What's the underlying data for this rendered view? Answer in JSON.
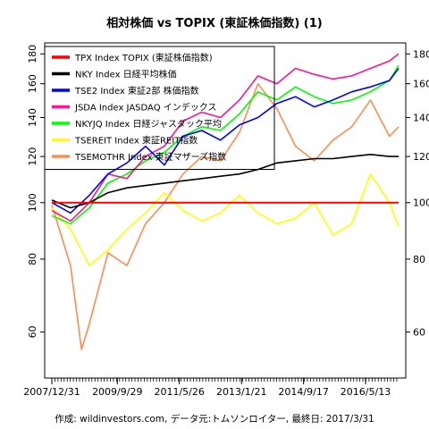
{
  "chart_data": {
    "type": "line",
    "title": "相対株価 vs TOPIX (東証株価指数) (1)",
    "caption": "作成: wildinvestors.com, データ元:トムソンロイター, 最終日: 2017/3/31",
    "x_tick_labels": [
      "2007/12/31",
      "2009/9/29",
      "2011/5/26",
      "2013/1/21",
      "2014/9/17",
      "2016/5/13"
    ],
    "x_range": [
      "2007-12-31",
      "2017-03-31"
    ],
    "y_ticks": [
      60,
      80,
      100,
      120,
      140,
      160,
      180
    ],
    "ylim": [
      50,
      188
    ],
    "y_scale": "log",
    "legend_position": "top-left",
    "series": [
      {
        "name": "TPX Index TOPIX (東証株価指数)",
        "color": "#ff0000",
        "points": [
          [
            "2007-12-31",
            100
          ],
          [
            "2017-03-31",
            100
          ]
        ]
      },
      {
        "name": "NKY Index 日経平均株価",
        "color": "#000000",
        "points": [
          [
            "2007-12-31",
            101
          ],
          [
            "2008-06-30",
            98
          ],
          [
            "2008-12-31",
            100
          ],
          [
            "2009-06-30",
            104
          ],
          [
            "2009-12-31",
            106
          ],
          [
            "2010-06-30",
            107
          ],
          [
            "2010-12-31",
            108
          ],
          [
            "2011-06-30",
            109
          ],
          [
            "2011-12-31",
            110
          ],
          [
            "2012-06-30",
            111
          ],
          [
            "2012-12-31",
            112
          ],
          [
            "2013-06-30",
            114
          ],
          [
            "2013-12-31",
            117
          ],
          [
            "2014-06-30",
            118
          ],
          [
            "2014-12-31",
            119
          ],
          [
            "2015-06-30",
            119
          ],
          [
            "2015-12-31",
            120
          ],
          [
            "2016-06-30",
            121
          ],
          [
            "2016-12-31",
            120
          ],
          [
            "2017-03-31",
            120
          ]
        ]
      },
      {
        "name": "TSE2 Index 東証2部 株価指数",
        "color": "#0000ff",
        "points": [
          [
            "2007-12-31",
            100
          ],
          [
            "2008-06-30",
            96
          ],
          [
            "2008-12-31",
            103
          ],
          [
            "2009-06-30",
            112
          ],
          [
            "2009-12-31",
            117
          ],
          [
            "2010-06-30",
            125
          ],
          [
            "2010-12-31",
            116
          ],
          [
            "2011-06-30",
            130
          ],
          [
            "2011-12-31",
            133
          ],
          [
            "2012-06-30",
            128
          ],
          [
            "2012-12-31",
            136
          ],
          [
            "2013-06-30",
            140
          ],
          [
            "2013-12-31",
            148
          ],
          [
            "2014-06-30",
            152
          ],
          [
            "2014-12-31",
            146
          ],
          [
            "2015-06-30",
            150
          ],
          [
            "2015-12-31",
            155
          ],
          [
            "2016-06-30",
            158
          ],
          [
            "2016-12-31",
            162
          ],
          [
            "2017-03-31",
            170
          ]
        ]
      },
      {
        "name": "JSDA Index JASDAQ インデックス",
        "color": "#ff1493",
        "points": [
          [
            "2007-12-31",
            97
          ],
          [
            "2008-06-30",
            93
          ],
          [
            "2008-12-31",
            100
          ],
          [
            "2009-06-30",
            112
          ],
          [
            "2009-12-31",
            110
          ],
          [
            "2010-06-30",
            120
          ],
          [
            "2010-12-31",
            125
          ],
          [
            "2011-06-30",
            138
          ],
          [
            "2011-12-31",
            143
          ],
          [
            "2012-06-30",
            140
          ],
          [
            "2012-12-31",
            150
          ],
          [
            "2013-06-30",
            165
          ],
          [
            "2013-12-31",
            160
          ],
          [
            "2014-06-30",
            170
          ],
          [
            "2014-12-31",
            166
          ],
          [
            "2015-06-30",
            163
          ],
          [
            "2015-12-31",
            165
          ],
          [
            "2016-06-30",
            170
          ],
          [
            "2016-12-31",
            175
          ],
          [
            "2017-03-31",
            180
          ]
        ]
      },
      {
        "name": "NKYJQ Index 日経ジャスダック平均",
        "color": "#00ff00",
        "points": [
          [
            "2007-12-31",
            95
          ],
          [
            "2008-06-30",
            92
          ],
          [
            "2008-12-31",
            98
          ],
          [
            "2009-06-30",
            108
          ],
          [
            "2009-12-31",
            112
          ],
          [
            "2010-06-30",
            118
          ],
          [
            "2010-12-31",
            122
          ],
          [
            "2011-06-30",
            130
          ],
          [
            "2011-12-31",
            135
          ],
          [
            "2012-06-30",
            133
          ],
          [
            "2012-12-31",
            142
          ],
          [
            "2013-06-30",
            155
          ],
          [
            "2013-12-31",
            150
          ],
          [
            "2014-06-30",
            158
          ],
          [
            "2014-12-31",
            152
          ],
          [
            "2015-06-30",
            148
          ],
          [
            "2015-12-31",
            150
          ],
          [
            "2016-06-30",
            155
          ],
          [
            "2016-12-31",
            162
          ],
          [
            "2017-03-31",
            172
          ]
        ]
      },
      {
        "name": "TSEREIT Index 東証REIT指数",
        "color": "#ffff00",
        "points": [
          [
            "2007-12-31",
            98
          ],
          [
            "2008-06-30",
            90
          ],
          [
            "2008-12-31",
            78
          ],
          [
            "2009-06-30",
            83
          ],
          [
            "2009-12-31",
            90
          ],
          [
            "2010-06-30",
            96
          ],
          [
            "2010-12-31",
            104
          ],
          [
            "2011-06-30",
            97
          ],
          [
            "2011-12-31",
            93
          ],
          [
            "2012-06-30",
            96
          ],
          [
            "2012-12-31",
            103
          ],
          [
            "2013-06-30",
            96
          ],
          [
            "2013-12-31",
            92
          ],
          [
            "2014-06-30",
            94
          ],
          [
            "2014-12-31",
            100
          ],
          [
            "2015-06-30",
            88
          ],
          [
            "2015-12-31",
            92
          ],
          [
            "2016-06-30",
            112
          ],
          [
            "2016-12-31",
            100
          ],
          [
            "2017-03-31",
            91
          ]
        ]
      },
      {
        "name": "TSEMOTHR Index 東証マザーズ指数",
        "color": "#ff8c50",
        "points": [
          [
            "2007-12-31",
            99
          ],
          [
            "2008-06-30",
            78
          ],
          [
            "2008-10-15",
            56
          ],
          [
            "2008-12-31",
            62
          ],
          [
            "2009-06-30",
            82
          ],
          [
            "2009-12-31",
            78
          ],
          [
            "2010-06-30",
            92
          ],
          [
            "2010-12-31",
            100
          ],
          [
            "2011-06-30",
            112
          ],
          [
            "2011-12-31",
            120
          ],
          [
            "2012-06-30",
            118
          ],
          [
            "2012-12-31",
            132
          ],
          [
            "2013-06-30",
            160
          ],
          [
            "2013-12-31",
            145
          ],
          [
            "2014-06-30",
            125
          ],
          [
            "2014-12-31",
            118
          ],
          [
            "2015-06-30",
            128
          ],
          [
            "2015-12-31",
            135
          ],
          [
            "2016-06-30",
            150
          ],
          [
            "2016-12-31",
            130
          ],
          [
            "2017-03-31",
            135
          ]
        ]
      }
    ]
  }
}
